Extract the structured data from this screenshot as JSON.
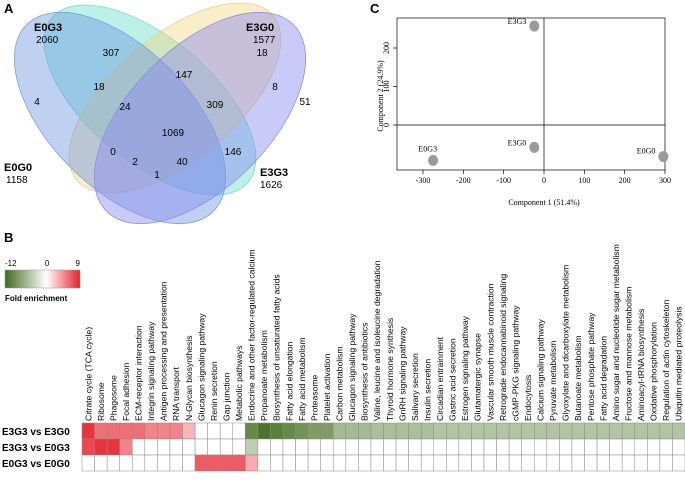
{
  "panels": {
    "a": "A",
    "b": "B",
    "c": "C"
  },
  "venn": {
    "sets": [
      {
        "name": "E0G3",
        "total": "2060",
        "color": "#55dbc6"
      },
      {
        "name": "E3G0",
        "total": "1577",
        "color": "#f2d37a"
      },
      {
        "name": "E0G0",
        "total": "1158",
        "color": "#6f99e0"
      },
      {
        "name": "E3G3",
        "total": "1626",
        "color": "#8a8af0"
      }
    ],
    "regions": [
      "307",
      "18",
      "4",
      "51",
      "18",
      "147",
      "8",
      "24",
      "309",
      "1069",
      "0",
      "2",
      "40",
      "146",
      "1"
    ]
  },
  "pca": {
    "xlabel": "Component 1 (51.4%)",
    "ylabel": "Component 2 (24.9%)",
    "xticks": [
      "-300",
      "-200",
      "-100",
      "0",
      "100",
      "200",
      "300"
    ],
    "yticks": [
      "0",
      "100",
      "200"
    ],
    "points": [
      {
        "label": "E3G3",
        "x": -24,
        "y": 257
      },
      {
        "label": "E3G0",
        "x": -24,
        "y": -58
      },
      {
        "label": "E0G3",
        "x": -275,
        "y": -92
      },
      {
        "label": "E0G0",
        "x": 296,
        "y": -82
      }
    ]
  },
  "heatmap": {
    "legend": {
      "min": "-12",
      "mid": "0",
      "max": "9",
      "title": "Fold enrichment",
      "neg_color": "#3f6b1a",
      "pos_color": "#e8202a"
    },
    "pathways": [
      "Citrate cycle (TCA cycle)",
      "Ribosome",
      "Phagosome",
      "Focal adhesion",
      "ECM-receptor interaction",
      "Integrin signaling pathway",
      "Antigen processing and presentation",
      "RNA transport",
      "N-Glycan biosynthesis",
      "Glucagon signaling pathway",
      "Renin secretion",
      "Gap junction",
      "Metabolic pathways",
      "Endocrine and other factor-regulated calcium",
      "Propanoate metabolism",
      "Biosynthesis of unsaturated fatty acids",
      "Fatty acid elongation",
      "Fatty acid metabolism",
      "Proteasome",
      "Platelet activation",
      "Carbon metabolism",
      "Glucagon signaling pathway",
      "Biosynthesis of antibiotics",
      "Valine, leucine and isoleucine degradation",
      "Thyroid hormone synthesis",
      "GnRH signaling pathway",
      "Salivary secretion",
      "Insulin secretion",
      "Circadian entrainment",
      "Gastric acid secretion",
      "Estrogen signaling pathway",
      "Glutamatergic synapse",
      "Vascular smooth muscle contraction",
      "Retrograde endocannabinoid signaling",
      "cGMP-PKG signaling pathway",
      "Endocytosis",
      "Calcium signaling pathway",
      "Pyruvate metabolism",
      "Glyoxylate and dicarboxylate metabolism",
      "Butanoate metabolism",
      "Pentose phosphate pathway",
      "Fatty acid degradation",
      "Amino sugar and nucleotide sugar metabolism",
      "Fructose and mannose metabolism",
      "Aminoacyl-tRNA biosynthesis",
      "Oxidative phosphorylation",
      "Regulation of actin cytoskeleton",
      "Ubiquitin mediated proteolysis"
    ],
    "rows": [
      {
        "label": "E3G3 vs E3G0",
        "values": [
          8,
          5,
          5,
          5,
          5,
          4,
          4,
          4,
          1.5,
          0,
          0,
          0,
          0,
          -9,
          -11,
          -10,
          -9,
          -8,
          -7,
          -7,
          -4,
          -4,
          -4,
          -3.5,
          -3.5,
          -3.5,
          -3.5,
          -3.5,
          -3,
          -3,
          -3,
          -3,
          -3,
          -3,
          -3,
          -3,
          -3,
          -3,
          -3,
          -3,
          -3,
          -3,
          -3,
          -3,
          -3,
          -3,
          -3,
          -3
        ]
      },
      {
        "label": "E3G3 vs E0G3",
        "values": [
          7,
          8,
          8,
          4,
          0,
          0,
          0,
          0,
          0,
          0,
          0,
          0,
          0,
          -2,
          0,
          0,
          0,
          0,
          0,
          0,
          0,
          0,
          0,
          0,
          0,
          0,
          0,
          0,
          0,
          0,
          0,
          0,
          0,
          0,
          0,
          0,
          0,
          0,
          0,
          0,
          0,
          0,
          0,
          0,
          0,
          0,
          0,
          0
        ]
      },
      {
        "label": "E0G3 vs E0G0",
        "values": [
          0,
          0,
          0,
          0,
          0,
          0,
          0,
          0,
          0,
          6,
          6,
          6,
          6,
          2,
          0,
          0,
          0,
          0,
          0,
          0,
          0,
          0,
          0,
          0,
          0,
          0,
          0,
          0,
          0,
          0,
          0,
          0,
          0,
          0,
          0,
          0,
          0,
          0,
          0,
          0,
          0,
          0,
          0,
          0,
          0,
          0,
          0,
          0
        ]
      }
    ]
  }
}
